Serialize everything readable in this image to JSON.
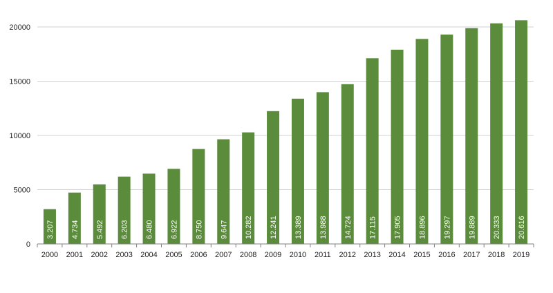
{
  "chart_data": {
    "type": "bar",
    "categories": [
      "2000",
      "2001",
      "2002",
      "2003",
      "2004",
      "2005",
      "2006",
      "2007",
      "2008",
      "2009",
      "2010",
      "2011",
      "2012",
      "2013",
      "2014",
      "2015",
      "2016",
      "2017",
      "2018",
      "2019"
    ],
    "values": [
      3207,
      4734,
      5492,
      6203,
      6480,
      6922,
      8750,
      9647,
      10282,
      12241,
      13389,
      13988,
      14724,
      17115,
      17905,
      18896,
      19297,
      19889,
      20333,
      20616
    ],
    "data_labels": [
      "3.207",
      "4.734",
      "5.492",
      "6.203",
      "6.480",
      "6.922",
      "8.750",
      "9.647",
      "10.282",
      "12.241",
      "13.389",
      "13.988",
      "14.724",
      "17.115",
      "17.905",
      "18.896",
      "19.297",
      "19.889",
      "20.333",
      "20.616"
    ],
    "y_ticks": [
      0,
      5000,
      10000,
      15000,
      20000
    ],
    "ylim": [
      0,
      20000
    ],
    "grid": true,
    "title": "",
    "xlabel": "",
    "ylabel": "",
    "colors": {
      "bar": "#5b8c3c",
      "grid": "#d0d0d0",
      "axis": "#7f7f7f"
    }
  }
}
